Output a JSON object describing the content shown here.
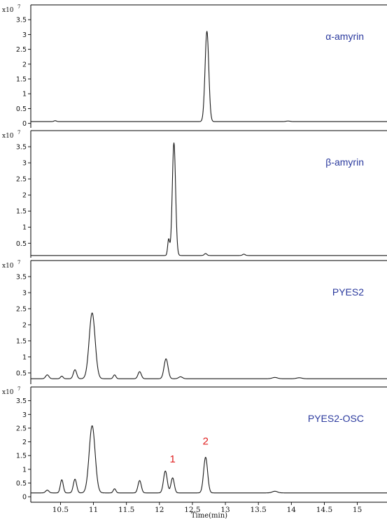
{
  "chart_data": {
    "type": "line",
    "xlabel": "Time(min)",
    "x_ticks": [
      "10.5",
      "11",
      "11.5",
      "12",
      "12.5",
      "13",
      "13.5",
      "14",
      "14.5",
      "15"
    ],
    "xlim": [
      10.05,
      15.45
    ],
    "scale_prefix": "x10",
    "scale_exponent": "7",
    "label_color": "#2b3a9e",
    "peak_label_color": "#e02020",
    "panels": [
      {
        "name": "α-amyrin",
        "ylim": [
          -0.15,
          4.0
        ],
        "y_ticks": [
          0,
          0.5,
          1,
          1.5,
          2,
          2.5,
          3,
          3.5
        ],
        "baseline": 0.06,
        "peaks": [
          {
            "x": 10.42,
            "h": 0.03,
            "w": 0.02
          },
          {
            "x": 12.72,
            "h": 3.05,
            "w": 0.028
          },
          {
            "x": 13.95,
            "h": 0.02,
            "w": 0.03
          }
        ],
        "annotations": []
      },
      {
        "name": "β-amyrin",
        "ylim": [
          0.05,
          4.0
        ],
        "y_ticks": [
          0.5,
          1,
          1.5,
          2,
          2.5,
          3,
          3.5
        ],
        "baseline": 0.12,
        "peaks": [
          {
            "x": 12.14,
            "h": 0.5,
            "w": 0.015
          },
          {
            "x": 12.22,
            "h": 3.5,
            "w": 0.025
          },
          {
            "x": 12.7,
            "h": 0.06,
            "w": 0.02
          },
          {
            "x": 13.28,
            "h": 0.04,
            "w": 0.02
          }
        ],
        "annotations": []
      },
      {
        "name": "PYES2",
        "ylim": [
          0.15,
          4.0
        ],
        "y_ticks": [
          0.5,
          1,
          1.5,
          2,
          2.5,
          3,
          3.5
        ],
        "baseline": 0.32,
        "peaks": [
          {
            "x": 10.3,
            "h": 0.12,
            "w": 0.025
          },
          {
            "x": 10.52,
            "h": 0.08,
            "w": 0.02
          },
          {
            "x": 10.72,
            "h": 0.28,
            "w": 0.025
          },
          {
            "x": 10.98,
            "h": 2.05,
            "w": 0.045
          },
          {
            "x": 11.32,
            "h": 0.12,
            "w": 0.02
          },
          {
            "x": 11.7,
            "h": 0.22,
            "w": 0.025
          },
          {
            "x": 12.1,
            "h": 0.62,
            "w": 0.03
          },
          {
            "x": 12.32,
            "h": 0.06,
            "w": 0.03
          },
          {
            "x": 13.75,
            "h": 0.04,
            "w": 0.04
          },
          {
            "x": 14.12,
            "h": 0.03,
            "w": 0.04
          }
        ],
        "annotations": []
      },
      {
        "name": "PYES2-OSC",
        "ylim": [
          -0.2,
          4.0
        ],
        "y_ticks": [
          0,
          0.5,
          1,
          1.5,
          2,
          2.5,
          3,
          3.5
        ],
        "baseline": 0.14,
        "peaks": [
          {
            "x": 10.3,
            "h": 0.1,
            "w": 0.025
          },
          {
            "x": 10.52,
            "h": 0.48,
            "w": 0.022
          },
          {
            "x": 10.72,
            "h": 0.5,
            "w": 0.025
          },
          {
            "x": 10.98,
            "h": 2.45,
            "w": 0.045
          },
          {
            "x": 11.32,
            "h": 0.15,
            "w": 0.02
          },
          {
            "x": 11.7,
            "h": 0.45,
            "w": 0.025
          },
          {
            "x": 12.09,
            "h": 0.8,
            "w": 0.028
          },
          {
            "x": 12.2,
            "h": 0.55,
            "w": 0.025
          },
          {
            "x": 12.7,
            "h": 1.3,
            "w": 0.03
          },
          {
            "x": 13.75,
            "h": 0.06,
            "w": 0.04
          }
        ],
        "annotations": [
          {
            "text": "1",
            "x": 12.2,
            "y": 1.25
          },
          {
            "text": "2",
            "x": 12.7,
            "y": 1.9
          }
        ]
      }
    ]
  }
}
